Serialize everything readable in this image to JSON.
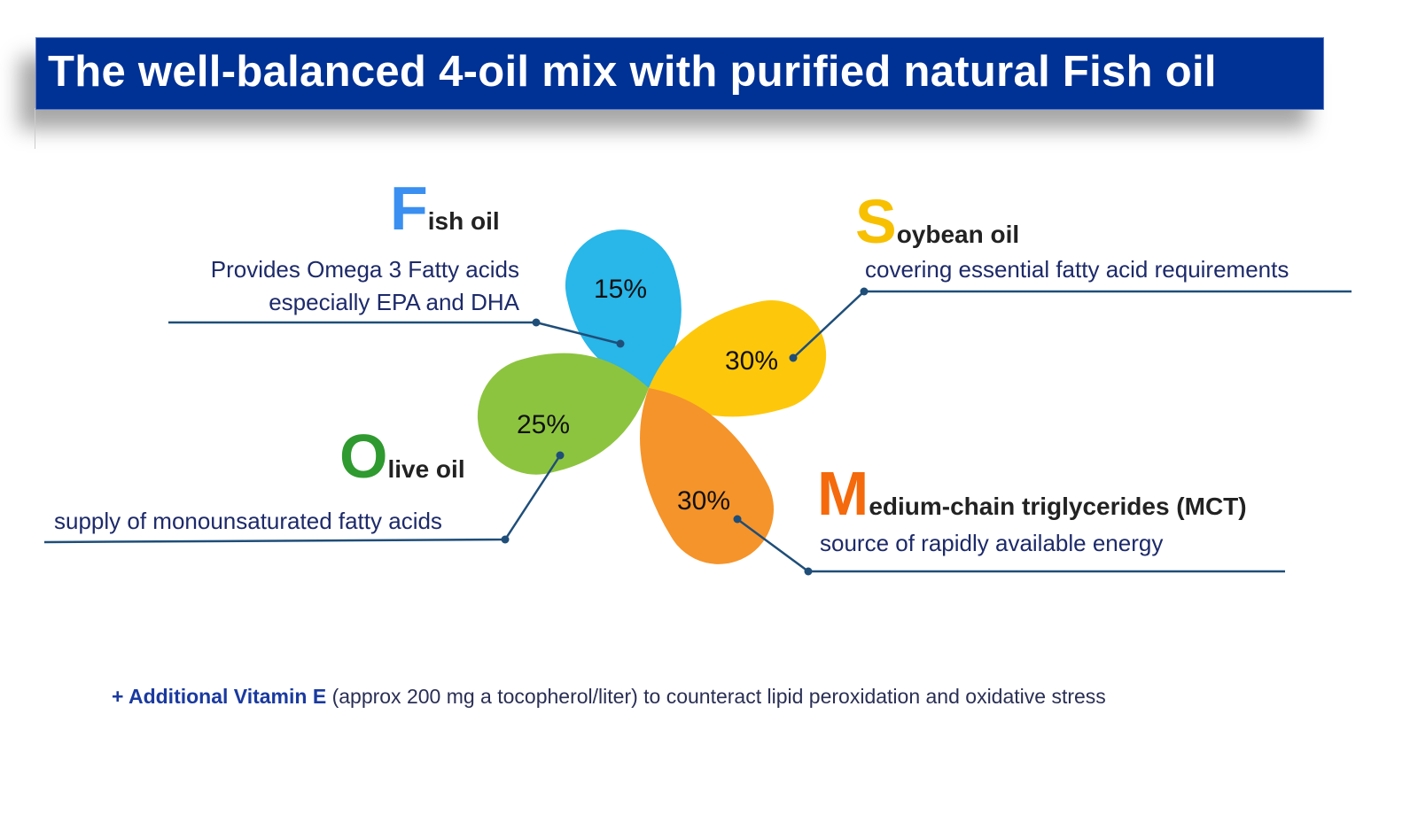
{
  "title": "The well-balanced 4-oil mix with purified natural Fish oil",
  "oils": {
    "fish": {
      "initial": "F",
      "rest": "ish oil",
      "percent": "15%",
      "desc1": "Provides Omega 3 Fatty acids",
      "desc2": "especially EPA and DHA",
      "color": "#29b6e8",
      "initial_color": "#3a8ff0"
    },
    "soybean": {
      "initial": "S",
      "rest": "oybean oil",
      "percent": "30%",
      "desc1": "covering essential fatty acid requirements",
      "color": "#fdc80c",
      "initial_color": "#f7c000"
    },
    "olive": {
      "initial": "O",
      "rest": "live oil",
      "percent": "25%",
      "desc1": "supply of monounsaturated fatty acids",
      "color": "#8dc43f",
      "initial_color": "#2f9a2f"
    },
    "mct": {
      "initial": "M",
      "rest": "edium-chain triglycerides (MCT)",
      "percent": "30%",
      "desc1": "source of rapidly available energy",
      "color": "#f5942a",
      "initial_color": "#f46a0c"
    }
  },
  "footer": {
    "bold": "+ Additional Vitamin E",
    "rest": " (approx 200 mg a tocopherol/liter) to counteract lipid peroxidation and oxidative stress"
  }
}
